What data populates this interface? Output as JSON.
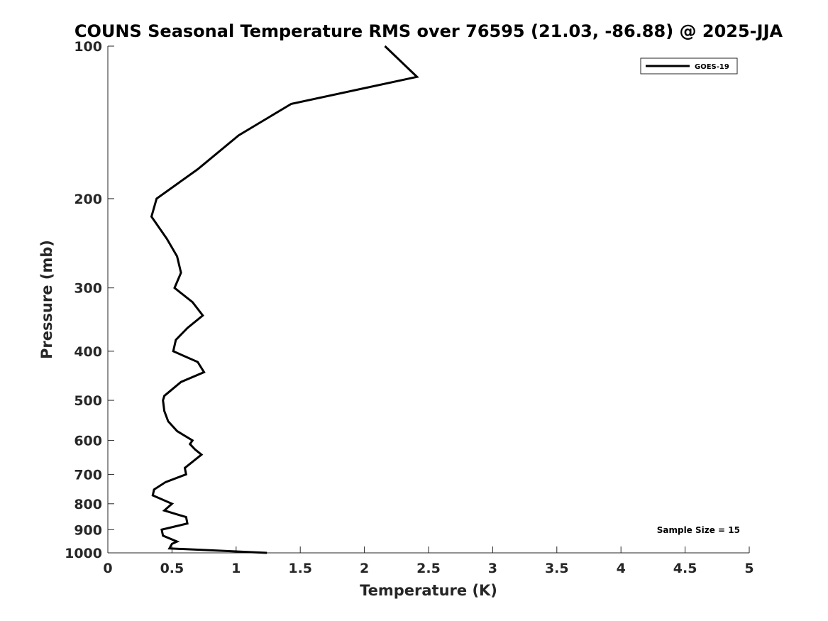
{
  "chart_data": {
    "type": "line",
    "title": "COUNS Seasonal Temperature RMS over 76595 (21.03, -86.88) @ 2025-JJA",
    "xlabel": "Temperature (K)",
    "ylabel": "Pressure (mb)",
    "xlim": [
      0,
      5
    ],
    "ylim": [
      100,
      1000
    ],
    "y_scale": "log",
    "y_reversed": true,
    "x_ticks": [
      "0",
      "0.5",
      "1",
      "1.5",
      "2",
      "2.5",
      "3",
      "3.5",
      "4",
      "4.5",
      "5"
    ],
    "y_ticks": [
      "100",
      "200",
      "300",
      "400",
      "500",
      "600",
      "700",
      "800",
      "900",
      "1000"
    ],
    "grid": false,
    "legend": {
      "placement": "top-right"
    },
    "series": [
      {
        "name": "GOES-19",
        "color": "#000000",
        "x": [
          2.16,
          2.41,
          1.43,
          1.02,
          0.7,
          0.38,
          0.34,
          0.46,
          0.54,
          0.57,
          0.52,
          0.66,
          0.74,
          0.62,
          0.53,
          0.51,
          0.7,
          0.75,
          0.57,
          0.44,
          0.43,
          0.44,
          0.47,
          0.54,
          0.66,
          0.64,
          0.68,
          0.73,
          0.68,
          0.6,
          0.61,
          0.45,
          0.36,
          0.35,
          0.5,
          0.44,
          0.61,
          0.62,
          0.42,
          0.43,
          0.54,
          0.5,
          0.48,
          1.24
        ],
        "y": [
          100,
          115,
          130,
          150,
          175,
          200,
          217,
          240,
          260,
          280,
          300,
          320,
          340,
          360,
          380,
          400,
          420,
          440,
          460,
          490,
          500,
          525,
          550,
          575,
          600,
          610,
          625,
          640,
          655,
          680,
          700,
          725,
          750,
          770,
          800,
          825,
          850,
          875,
          900,
          925,
          950,
          960,
          980,
          1000
        ]
      }
    ],
    "annotations": [
      {
        "text": "Sample Size = 15"
      }
    ]
  }
}
